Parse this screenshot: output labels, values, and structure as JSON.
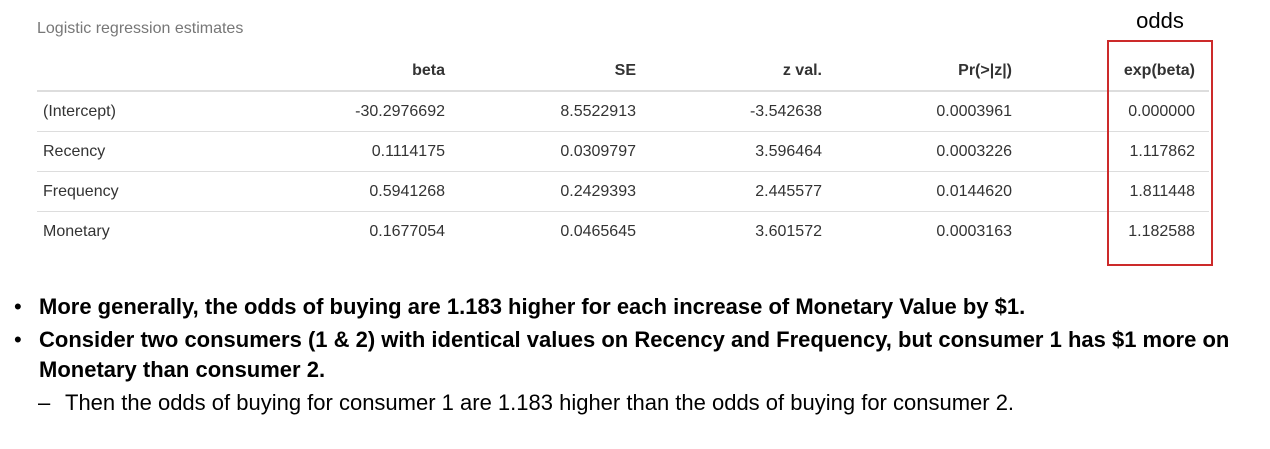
{
  "caption": "Logistic regression estimates",
  "annotation": {
    "odds_label": "odds",
    "highlight_color": "#cc2a2a"
  },
  "table": {
    "columns": [
      "",
      "beta",
      "SE",
      "z val.",
      "Pr(>|z|)",
      "exp(beta)"
    ],
    "rows": [
      [
        "(Intercept)",
        "-30.2976692",
        "8.5522913",
        "-3.542638",
        "0.0003961",
        "0.000000"
      ],
      [
        "Recency",
        "0.1114175",
        "0.0309797",
        "3.596464",
        "0.0003226",
        "1.117862"
      ],
      [
        "Frequency",
        "0.5941268",
        "0.2429393",
        "2.445577",
        "0.0144620",
        "1.811448"
      ],
      [
        "Monetary",
        "0.1677054",
        "0.0465645",
        "3.601572",
        "0.0003163",
        "1.182588"
      ]
    ]
  },
  "bullets": [
    {
      "marker": "•",
      "text": "More generally, the odds of buying are 1.183 higher for each increase of Monetary Value by $1."
    },
    {
      "marker": "•",
      "text": "Consider two consumers (1 & 2) with identical values on Recency and Frequency, but consumer 1 has $1 more on Monetary than consumer 2."
    }
  ],
  "sub_bullet": {
    "marker": "–",
    "text": "Then the odds of buying for consumer 1 are 1.183 higher than the odds of buying for consumer 2."
  }
}
